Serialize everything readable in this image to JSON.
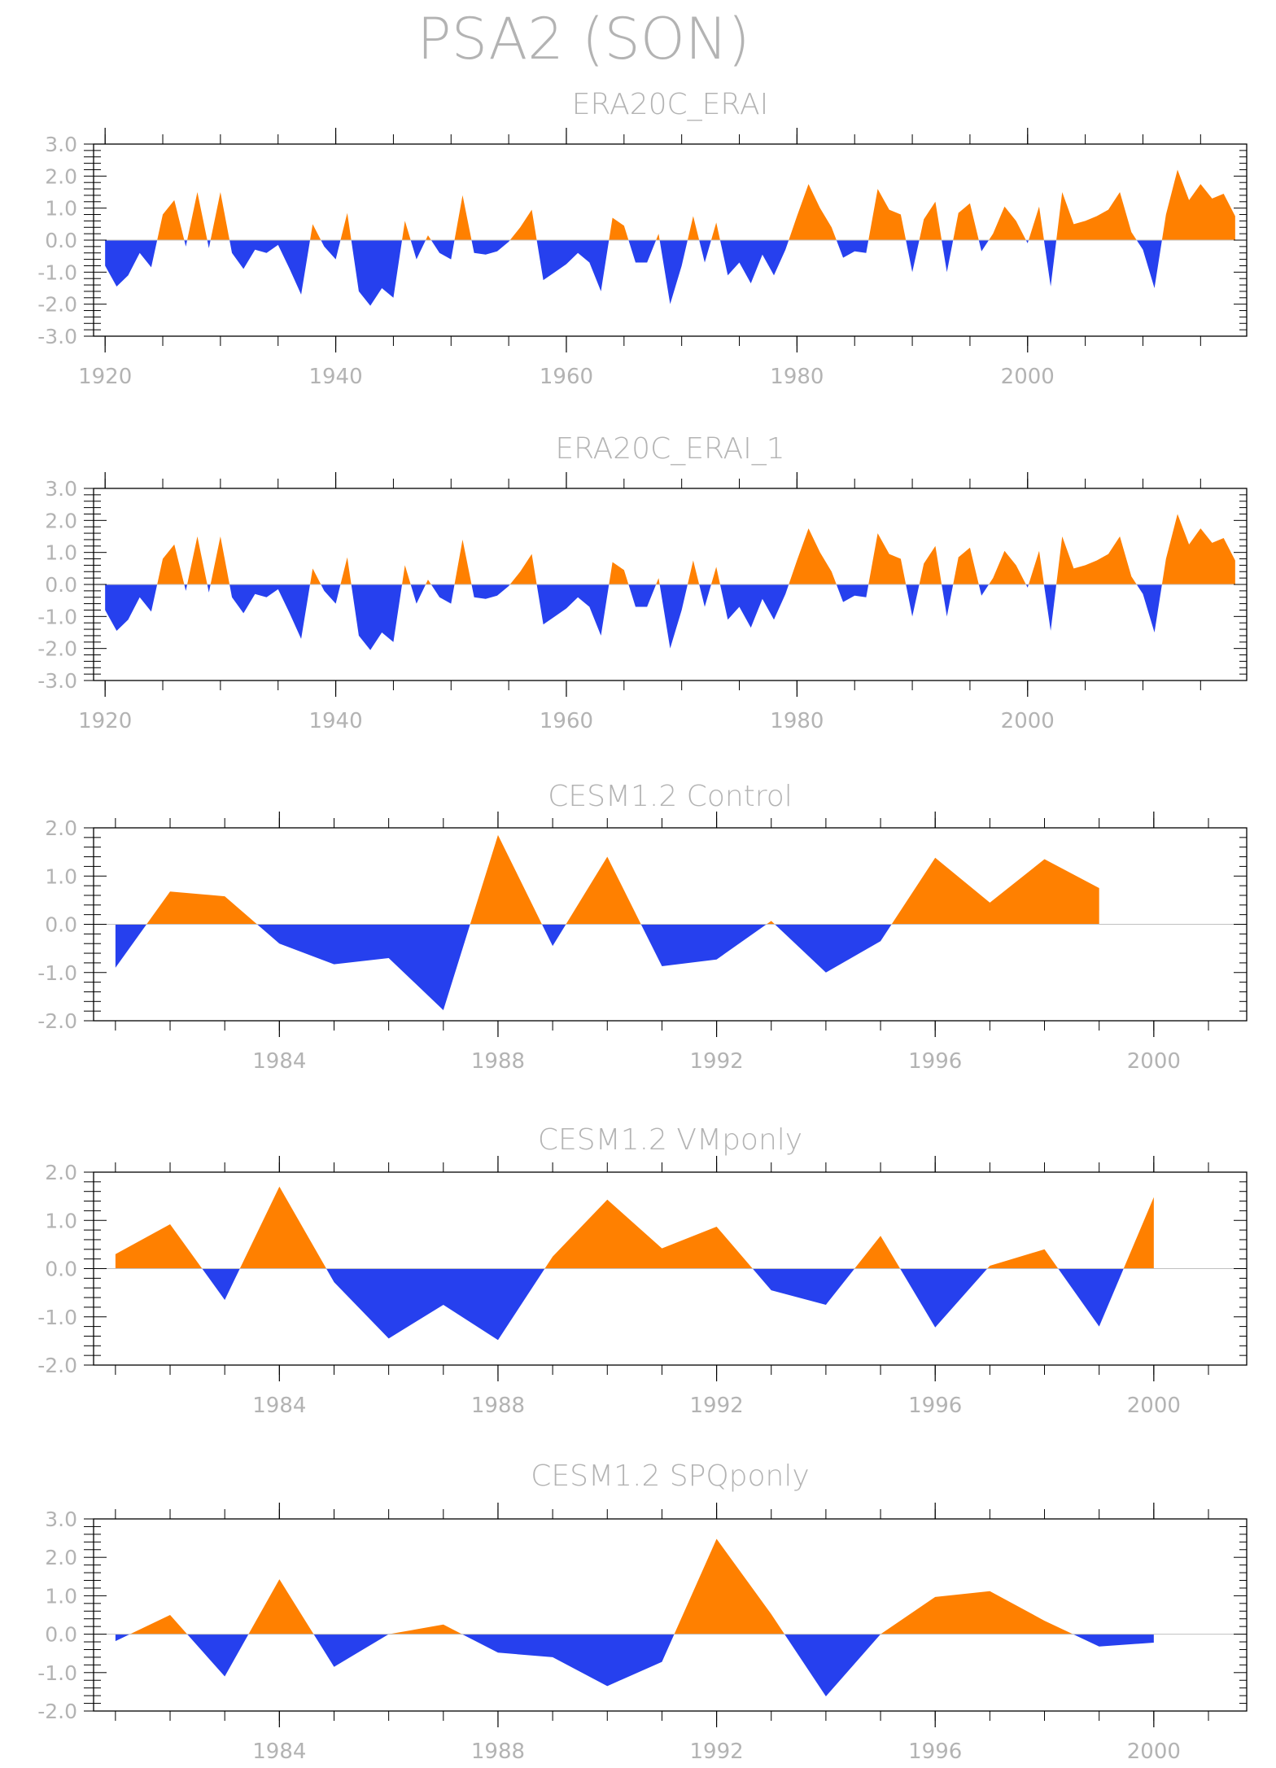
{
  "figure_title": "PSA2 (SON)",
  "colors": {
    "positive": "#ff8000",
    "negative": "#2640ee",
    "axis": "#000000",
    "text": "#b3b3b3",
    "zero_line": "#c0c0c0"
  },
  "chart_data": [
    {
      "type": "area",
      "title": "ERA20C_ERAI",
      "xlabel": "",
      "ylabel": "",
      "xlim": [
        1919,
        2019
      ],
      "ylim": [
        -3,
        3
      ],
      "x_ticks": [
        "1920",
        "1940",
        "1960",
        "1980",
        "2000"
      ],
      "y_ticks": [
        "3.0",
        "2.0",
        "1.0",
        "0.0",
        "-1.0",
        "-2.0",
        "-3.0"
      ],
      "x_start": 1920,
      "values": [
        -0.8,
        -1.45,
        -1.1,
        -0.4,
        -0.85,
        0.8,
        1.25,
        -0.2,
        1.5,
        -0.25,
        1.5,
        -0.4,
        -0.9,
        -0.3,
        -0.4,
        -0.15,
        -0.9,
        -1.7,
        0.5,
        -0.2,
        -0.6,
        0.85,
        -1.6,
        -2.05,
        -1.5,
        -1.8,
        0.6,
        -0.6,
        0.15,
        -0.4,
        -0.6,
        1.4,
        -0.4,
        -0.45,
        -0.35,
        -0.05,
        0.4,
        0.95,
        -1.25,
        -1.0,
        -0.75,
        -0.4,
        -0.7,
        -1.6,
        0.7,
        0.45,
        -0.7,
        -0.7,
        0.2,
        -2.0,
        -0.8,
        0.75,
        -0.7,
        0.55,
        -1.1,
        -0.7,
        -1.35,
        -0.45,
        -1.1,
        -0.3,
        0.75,
        1.75,
        1.0,
        0.4,
        -0.55,
        -0.35,
        -0.4,
        1.6,
        0.95,
        0.8,
        -1.0,
        0.65,
        1.2,
        -1.0,
        0.85,
        1.15,
        -0.35,
        0.2,
        1.05,
        0.6,
        -0.1,
        1.05,
        -1.45,
        1.5,
        0.5,
        0.6,
        0.75,
        0.95,
        1.5,
        0.25,
        -0.3,
        -1.5,
        0.8,
        2.2,
        1.25,
        1.75,
        1.3,
        1.45,
        0.75
      ]
    },
    {
      "type": "area",
      "title": "ERA20C_ERAI_1",
      "xlabel": "",
      "ylabel": "",
      "xlim": [
        1919,
        2019
      ],
      "ylim": [
        -3,
        3
      ],
      "x_ticks": [
        "1920",
        "1940",
        "1960",
        "1980",
        "2000"
      ],
      "y_ticks": [
        "3.0",
        "2.0",
        "1.0",
        "0.0",
        "-1.0",
        "-2.0",
        "-3.0"
      ],
      "x_start": 1920,
      "values": [
        -0.8,
        -1.45,
        -1.1,
        -0.4,
        -0.85,
        0.8,
        1.25,
        -0.2,
        1.5,
        -0.25,
        1.5,
        -0.4,
        -0.9,
        -0.3,
        -0.4,
        -0.15,
        -0.9,
        -1.7,
        0.5,
        -0.2,
        -0.6,
        0.85,
        -1.6,
        -2.05,
        -1.5,
        -1.8,
        0.6,
        -0.6,
        0.15,
        -0.4,
        -0.6,
        1.4,
        -0.4,
        -0.45,
        -0.35,
        -0.05,
        0.4,
        0.95,
        -1.25,
        -1.0,
        -0.75,
        -0.4,
        -0.7,
        -1.6,
        0.7,
        0.45,
        -0.7,
        -0.7,
        0.2,
        -2.0,
        -0.8,
        0.75,
        -0.7,
        0.55,
        -1.1,
        -0.7,
        -1.35,
        -0.45,
        -1.1,
        -0.3,
        0.75,
        1.75,
        1.0,
        0.4,
        -0.55,
        -0.35,
        -0.4,
        1.6,
        0.95,
        0.8,
        -1.0,
        0.65,
        1.2,
        -1.0,
        0.85,
        1.15,
        -0.35,
        0.2,
        1.05,
        0.6,
        -0.1,
        1.05,
        -1.45,
        1.5,
        0.5,
        0.6,
        0.75,
        0.95,
        1.5,
        0.25,
        -0.3,
        -1.5,
        0.8,
        2.2,
        1.25,
        1.75,
        1.3,
        1.45,
        0.75
      ]
    },
    {
      "type": "area",
      "title": "CESM1.2 Control",
      "xlabel": "",
      "ylabel": "",
      "xlim": [
        1980.6,
        2001.7
      ],
      "ylim": [
        -2,
        2
      ],
      "x_ticks": [
        "1984",
        "1988",
        "1992",
        "1996",
        "2000"
      ],
      "y_ticks": [
        "2.0",
        "1.0",
        "0.0",
        "-1.0",
        "-2.0"
      ],
      "x_start": 1981,
      "values": [
        -0.9,
        0.68,
        0.58,
        -0.4,
        -0.83,
        -0.7,
        -1.78,
        1.85,
        -0.45,
        1.4,
        -0.87,
        -0.73,
        0.07,
        -1.0,
        -0.35,
        1.38,
        0.45,
        1.35,
        0.75
      ]
    },
    {
      "type": "area",
      "title": "CESM1.2 VMponly",
      "xlabel": "",
      "ylabel": "",
      "xlim": [
        1980.6,
        2001.7
      ],
      "ylim": [
        -2,
        2
      ],
      "x_ticks": [
        "1984",
        "1988",
        "1992",
        "1996",
        "2000"
      ],
      "y_ticks": [
        "2.0",
        "1.0",
        "0.0",
        "-1.0",
        "-2.0"
      ],
      "x_start": 1981,
      "values": [
        0.3,
        0.92,
        -0.65,
        1.7,
        -0.28,
        -1.45,
        -0.75,
        -1.48,
        0.25,
        1.43,
        0.42,
        0.87,
        -0.45,
        -0.75,
        0.68,
        -1.22,
        0.06,
        0.4,
        -1.2,
        1.48
      ]
    },
    {
      "type": "area",
      "title": "CESM1.2 SPQponly",
      "xlabel": "",
      "ylabel": "",
      "xlim": [
        1980.6,
        2001.7
      ],
      "ylim": [
        -2,
        3
      ],
      "x_ticks": [
        "1984",
        "1988",
        "1992",
        "1996",
        "2000"
      ],
      "y_ticks": [
        "3.0",
        "2.0",
        "1.0",
        "0.0",
        "-1.0",
        "-2.0"
      ],
      "x_start": 1981,
      "values": [
        -0.18,
        0.5,
        -1.1,
        1.43,
        -0.85,
        0.0,
        0.25,
        -0.48,
        -0.6,
        -1.35,
        -0.72,
        2.48,
        0.52,
        -1.62,
        0.0,
        0.97,
        1.12,
        0.35,
        -0.32,
        -0.22
      ]
    }
  ]
}
